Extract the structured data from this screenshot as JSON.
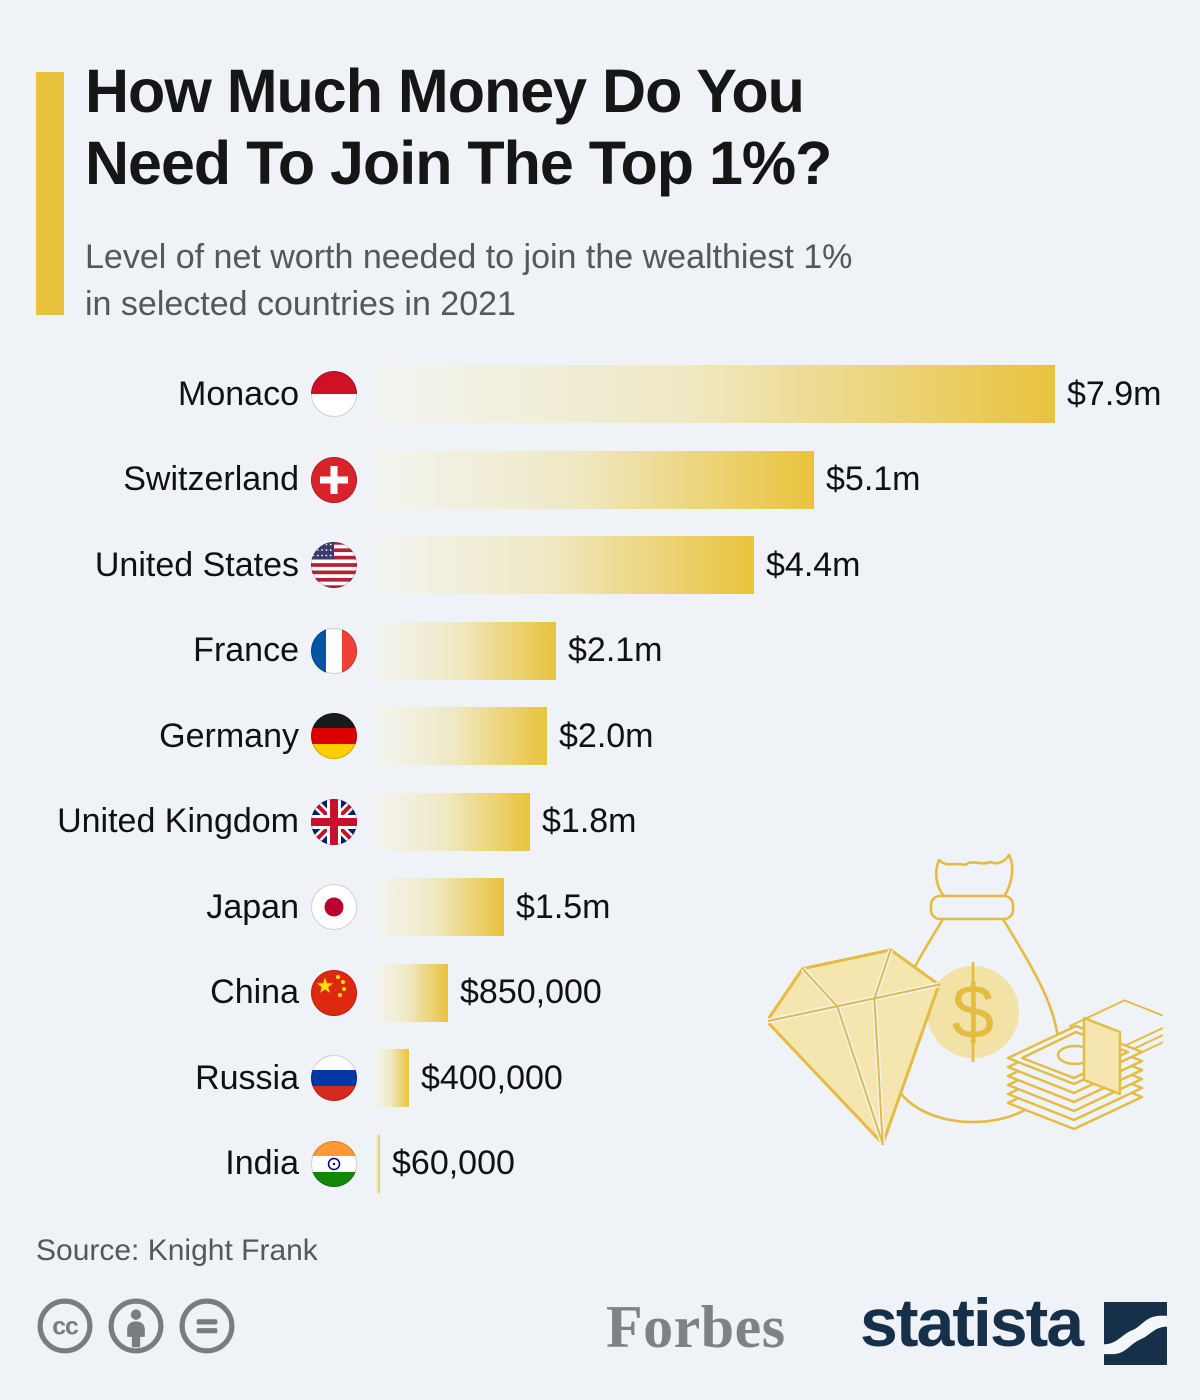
{
  "header": {
    "title_line1": "How Much Money Do You",
    "title_line2": "Need To Join The Top 1%?",
    "subtitle_line1": "Level of net worth needed to join the wealthiest 1%",
    "subtitle_line2": "in selected countries in 2021",
    "accent_color": "#E9C23C"
  },
  "chart_data": {
    "type": "bar",
    "orientation": "horizontal",
    "title": "How Much Money Do You Need To Join The Top 1%?",
    "subtitle": "Level of net worth needed to join the wealthiest 1% in selected countries in 2021",
    "unit": "USD net worth",
    "xlim_millions": [
      0,
      7.9
    ],
    "grid": false,
    "legend": false,
    "categories": [
      "Monaco",
      "Switzerland",
      "United States",
      "France",
      "Germany",
      "United Kingdom",
      "Japan",
      "China",
      "Russia",
      "India"
    ],
    "values_millions": [
      7.9,
      5.1,
      4.4,
      2.1,
      2.0,
      1.8,
      1.5,
      0.85,
      0.4,
      0.06
    ],
    "value_labels": [
      "$7.9m",
      "$5.1m",
      "$4.4m",
      "$2.1m",
      "$2.0m",
      "$1.8m",
      "$1.5m",
      "$850,000",
      "$400,000",
      "$60,000"
    ],
    "flag_icons": [
      "monaco-flag-icon",
      "switzerland-flag-icon",
      "united-states-flag-icon",
      "france-flag-icon",
      "germany-flag-icon",
      "united-kingdom-flag-icon",
      "japan-flag-icon",
      "china-flag-icon",
      "russia-flag-icon",
      "india-flag-icon"
    ],
    "bar_gradient": [
      "#F2F4F1",
      "#E9C33C"
    ]
  },
  "illustration": {
    "name": "wealth-illustration",
    "elements": [
      "diamond-icon",
      "money-bag-icon",
      "dollar-sign-icon",
      "banknotes-icon"
    ],
    "line_color": "#E3BC41",
    "fill_color": "#F5E6B0"
  },
  "footer": {
    "source": "Source: Knight Frank",
    "license_icons": [
      "cc-icon",
      "attribution-icon",
      "equal-icon"
    ],
    "logos": {
      "forbes": "Forbes",
      "statista": "statista"
    },
    "statista_color": "#16304A",
    "forbes_color": "#7F8285"
  }
}
